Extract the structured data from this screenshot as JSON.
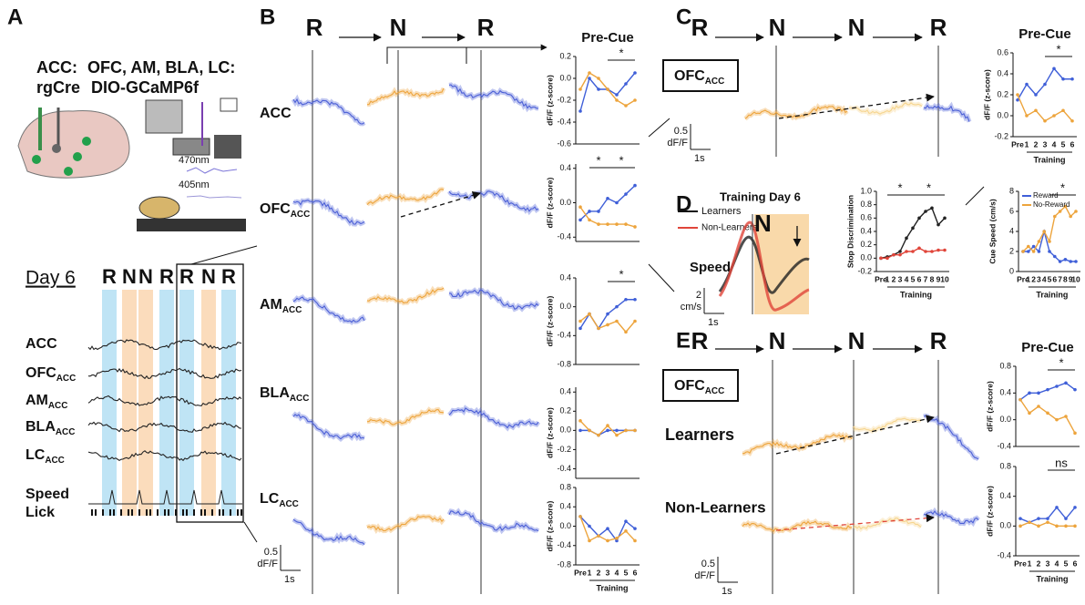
{
  "panel_labels": [
    "A",
    "B",
    "C",
    "D",
    "E"
  ],
  "panel_a": {
    "line1a": "ACC:",
    "line1b": "OFC, AM, BLA, LC:",
    "line2a": "rgCre",
    "line2b": "DIO-GCaMP6f",
    "wl1": "470nm",
    "wl2": "405nm",
    "day": "Day 6",
    "cues": [
      "R",
      "N",
      "N",
      "R",
      "R",
      "N",
      "R"
    ],
    "rows": [
      {
        "main": "ACC"
      },
      {
        "main": "OFC",
        "sub": "ACC"
      },
      {
        "main": "AM",
        "sub": "ACC"
      },
      {
        "main": "BLA",
        "sub": "ACC"
      },
      {
        "main": "LC",
        "sub": "ACC"
      },
      {
        "main": "Speed"
      },
      {
        "main": "Lick"
      }
    ]
  },
  "panel_b": {
    "header": [
      "R",
      "N",
      "R"
    ],
    "rows": [
      {
        "main": "ACC"
      },
      {
        "main": "OFC",
        "sub": "ACC"
      },
      {
        "main": "AM",
        "sub": "ACC"
      },
      {
        "main": "BLA",
        "sub": "ACC"
      },
      {
        "main": "LC",
        "sub": "ACC"
      }
    ],
    "scale": {
      "y": "0.5",
      "unit": "dF/F",
      "x": "1s"
    }
  },
  "panel_c": {
    "header": [
      "R",
      "N",
      "N",
      "R"
    ],
    "box": {
      "main": "OFC",
      "sub": "ACC"
    },
    "scale": {
      "y": "0.5",
      "unit": "dF/F",
      "x": "1s"
    }
  },
  "panel_d": {
    "title": "Training Day 6",
    "cue": "N",
    "legend": [
      "Learners",
      "Non-Learners"
    ],
    "label": "Speed",
    "scale": {
      "y": "2",
      "unit": "cm/s",
      "x": "1s"
    }
  },
  "panel_e": {
    "header": [
      "R",
      "N",
      "N",
      "R"
    ],
    "box": {
      "main": "OFC",
      "sub": "ACC"
    },
    "groups": [
      "Learners",
      "Non-Learners"
    ],
    "scale": {
      "y": "0.5",
      "unit": "dF/F",
      "x": "1s"
    }
  },
  "chart_data": [
    {
      "type": "line",
      "title": "Pre-Cue",
      "ylabel": "dF/F (z-score)",
      "ylim": [
        -0.6,
        0.2
      ],
      "yticks": [
        -0.6,
        -0.4,
        -0.2,
        {
          "value": 0,
          "label": "0.0"
        },
        0.2
      ],
      "annotations": [
        "*"
      ],
      "series": [
        {
          "color": "#3f5fd8",
          "values": [
            -0.3,
            0.0,
            -0.1,
            -0.1,
            -0.15,
            -0.05,
            0.05
          ]
        },
        {
          "color": "#eda43c",
          "values": [
            -0.1,
            0.05,
            0.0,
            -0.1,
            -0.2,
            -0.25,
            -0.2
          ]
        }
      ]
    },
    {
      "type": "line",
      "ylabel": "dF/F (z-score)",
      "ylim": [
        -0.45,
        0.45
      ],
      "yticks": [
        -0.4,
        {
          "value": 0,
          "label": "0.0"
        },
        0.4
      ],
      "annotations": [
        "*",
        "*"
      ],
      "series": [
        {
          "color": "#3f5fd8",
          "values": [
            -0.2,
            -0.1,
            -0.1,
            0.05,
            0.0,
            0.1,
            0.2
          ]
        },
        {
          "color": "#eda43c",
          "values": [
            -0.05,
            -0.2,
            -0.25,
            -0.25,
            -0.25,
            -0.25,
            -0.28
          ]
        }
      ]
    },
    {
      "type": "line",
      "ylabel": "dF/F (z-score)",
      "ylim": [
        -0.8,
        0.4
      ],
      "yticks": [
        -0.8,
        -0.4,
        {
          "value": 0,
          "label": "0.0"
        },
        0.4
      ],
      "annotations": [
        "*"
      ],
      "series": [
        {
          "color": "#3f5fd8",
          "values": [
            -0.3,
            -0.1,
            -0.3,
            -0.1,
            0.0,
            0.1,
            0.1
          ]
        },
        {
          "color": "#eda43c",
          "values": [
            -0.2,
            -0.1,
            -0.3,
            -0.25,
            -0.2,
            -0.35,
            -0.2
          ]
        }
      ]
    },
    {
      "type": "line",
      "ylabel": "dF/F (z-score)",
      "ylim": [
        -0.5,
        0.45
      ],
      "yticks": [
        -0.4,
        -0.2,
        {
          "value": 0,
          "label": "0.0"
        },
        0.2,
        0.4
      ],
      "series": [
        {
          "color": "#3f5fd8",
          "values": [
            0.0,
            0.0,
            -0.05,
            0.0,
            0.0,
            0.0,
            0.0
          ]
        },
        {
          "color": "#eda43c",
          "values": [
            0.1,
            0.0,
            -0.05,
            0.05,
            -0.05,
            0.0,
            0.0
          ]
        }
      ]
    },
    {
      "type": "line",
      "ylabel": "dF/F (z-score)",
      "xlabel": "Training",
      "categories": [
        "Pre",
        "1",
        "2",
        "3",
        "4",
        "5",
        "6"
      ],
      "ylim": [
        -0.8,
        0.8
      ],
      "yticks": [
        -0.8,
        -0.4,
        {
          "value": 0,
          "label": "0.0"
        },
        0.4,
        0.8
      ],
      "series": [
        {
          "color": "#3f5fd8",
          "values": [
            0.2,
            0.0,
            -0.2,
            -0.05,
            -0.3,
            0.1,
            -0.05
          ]
        },
        {
          "color": "#eda43c",
          "values": [
            0.2,
            -0.3,
            -0.2,
            -0.3,
            -0.25,
            -0.1,
            -0.3
          ]
        }
      ]
    },
    {
      "type": "line",
      "title": "Pre-Cue",
      "ylabel": "dF/F (z-score)",
      "xlabel": "Training",
      "categories": [
        "Pre",
        "1",
        "2",
        "3",
        "4",
        "5",
        "6"
      ],
      "ylim": [
        -0.2,
        0.6
      ],
      "yticks": [
        -0.2,
        {
          "value": 0,
          "label": "0.0"
        },
        0.2,
        0.4,
        0.6
      ],
      "annotations": [
        "*"
      ],
      "series": [
        {
          "color": "#3f5fd8",
          "values": [
            0.15,
            0.3,
            0.2,
            0.3,
            0.45,
            0.35,
            0.35
          ]
        },
        {
          "color": "#eda43c",
          "values": [
            0.2,
            0.0,
            0.05,
            -0.05,
            0.0,
            0.05,
            -0.05
          ]
        }
      ]
    },
    {
      "type": "line",
      "ylabel": "Stop Discrimination",
      "xlabel": "Training",
      "categories": [
        "Pre",
        "1",
        "2",
        "3",
        "4",
        "5",
        "6",
        "7",
        "8",
        "9",
        "10"
      ],
      "ylim": [
        -0.2,
        1.0
      ],
      "yticks": [
        -0.2,
        {
          "value": 0,
          "label": "0.0"
        },
        0.2,
        0.4,
        0.6,
        0.8,
        {
          "value": 1,
          "label": "1.0"
        }
      ],
      "annotations": [
        "*",
        "*"
      ],
      "series": [
        {
          "color": "#222222",
          "values": [
            0.0,
            0.02,
            0.05,
            0.1,
            0.3,
            0.45,
            0.6,
            0.7,
            0.75,
            0.5,
            0.6
          ]
        },
        {
          "color": "#e0453a",
          "values": [
            0.0,
            0.0,
            0.05,
            0.05,
            0.1,
            0.1,
            0.15,
            0.1,
            0.1,
            0.12,
            0.12
          ]
        }
      ]
    },
    {
      "type": "line",
      "ylabel": "Cue Speed (cm/s)",
      "xlabel": "Training",
      "categories": [
        "Pre",
        "1",
        "2",
        "3",
        "4",
        "5",
        "6",
        "7",
        "8",
        "9",
        "10"
      ],
      "ylim": [
        0,
        8
      ],
      "yticks": [
        0,
        2,
        4,
        6,
        8
      ],
      "annotations": [
        "*"
      ],
      "series": [
        {
          "name": "Reward",
          "color": "#3f5fd8",
          "values": [
            2,
            2,
            2.5,
            2,
            4,
            2,
            1.5,
            1,
            1.2,
            1,
            1
          ]
        },
        {
          "name": "No-Reward",
          "color": "#eda43c",
          "values": [
            2,
            2.5,
            2,
            3,
            4,
            3,
            5.5,
            6,
            6.5,
            5.5,
            6
          ]
        }
      ]
    },
    {
      "type": "line",
      "title": "Pre-Cue",
      "ylabel": "dF/F (z-score)",
      "ylim": [
        -0.4,
        0.8
      ],
      "yticks": [
        -0.4,
        {
          "value": 0,
          "label": "0.0"
        },
        0.4,
        0.8
      ],
      "annotations": [
        "*"
      ],
      "series": [
        {
          "color": "#3f5fd8",
          "values": [
            0.3,
            0.4,
            0.4,
            0.45,
            0.5,
            0.55,
            0.45
          ]
        },
        {
          "color": "#eda43c",
          "values": [
            0.3,
            0.1,
            0.2,
            0.1,
            0.0,
            0.05,
            -0.2
          ]
        }
      ]
    },
    {
      "type": "line",
      "ylabel": "dF/F (z-score)",
      "xlabel": "Training",
      "categories": [
        "Pre",
        "1",
        "2",
        "3",
        "4",
        "5",
        "6"
      ],
      "ylim": [
        -0.4,
        0.8
      ],
      "yticks": [
        -0.4,
        {
          "value": 0,
          "label": "0.0"
        },
        0.4,
        0.8
      ],
      "annotations": [
        "ns"
      ],
      "series": [
        {
          "color": "#3f5fd8",
          "values": [
            0.1,
            0.05,
            0.1,
            0.1,
            0.25,
            0.1,
            0.25
          ]
        },
        {
          "color": "#eda43c",
          "values": [
            0.0,
            0.05,
            0.0,
            0.05,
            0.0,
            0.0,
            0.0
          ]
        }
      ]
    }
  ]
}
